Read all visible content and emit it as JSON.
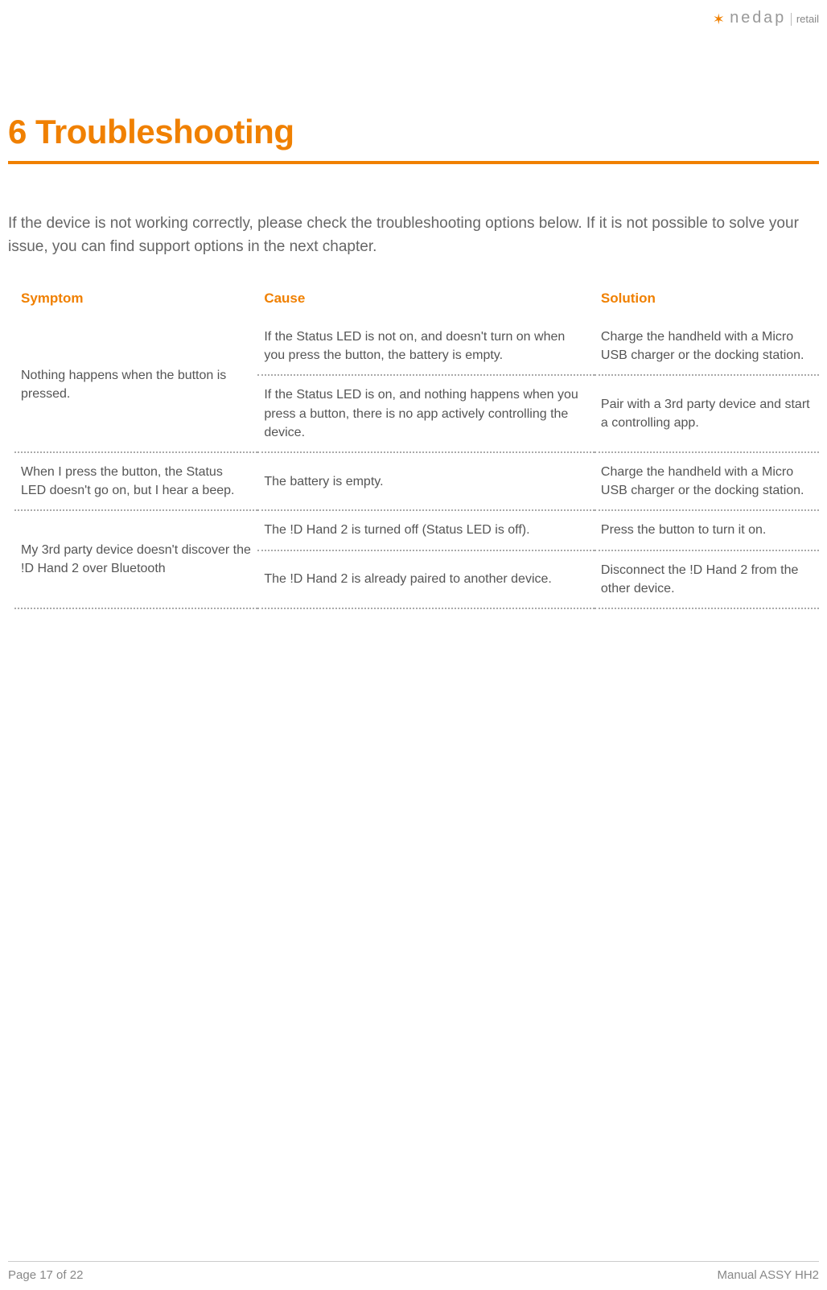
{
  "brand": {
    "name": "nedap",
    "sub": "retail",
    "accent_color": "#f08000",
    "text_color": "#555555"
  },
  "title": "6 Troubleshooting",
  "intro": "If the device is not working correctly, please check the troubleshooting options below. If it is not possible to solve your issue, you can find support options in the next chapter.",
  "table": {
    "headers": {
      "symptom": "Symptom",
      "cause": "Cause",
      "solution": "Solution"
    },
    "rows": [
      {
        "symptom": "Nothing happens when the button is pressed.",
        "sub": [
          {
            "cause": "If the Status LED is not on, and doesn't turn on when you press the button, the battery is empty.",
            "solution": "Charge the handheld with a Micro USB charger or the docking station."
          },
          {
            "cause": "If the Status LED is on, and nothing happens when you press a button, there is no app actively controlling the device.",
            "solution": "Pair with a 3rd party device and start a controlling app."
          }
        ]
      },
      {
        "symptom": "When I press the button, the Status LED doesn't go on, but I hear a beep.",
        "sub": [
          {
            "cause": "The battery is empty.",
            "solution": "Charge the handheld with a Micro USB charger or the docking station."
          }
        ]
      },
      {
        "symptom": "My 3rd party device doesn't discover the !D Hand 2 over Bluetooth",
        "sub": [
          {
            "cause": "The !D Hand 2 is turned off (Status LED is off).",
            "solution": "Press the button to turn it on."
          },
          {
            "cause": "The !D Hand 2 is already paired to another device.",
            "solution": "Disconnect the !D Hand 2 from the other device."
          }
        ]
      }
    ]
  },
  "footer": {
    "page": "Page 17 of 22",
    "doc": "Manual ASSY HH2"
  }
}
